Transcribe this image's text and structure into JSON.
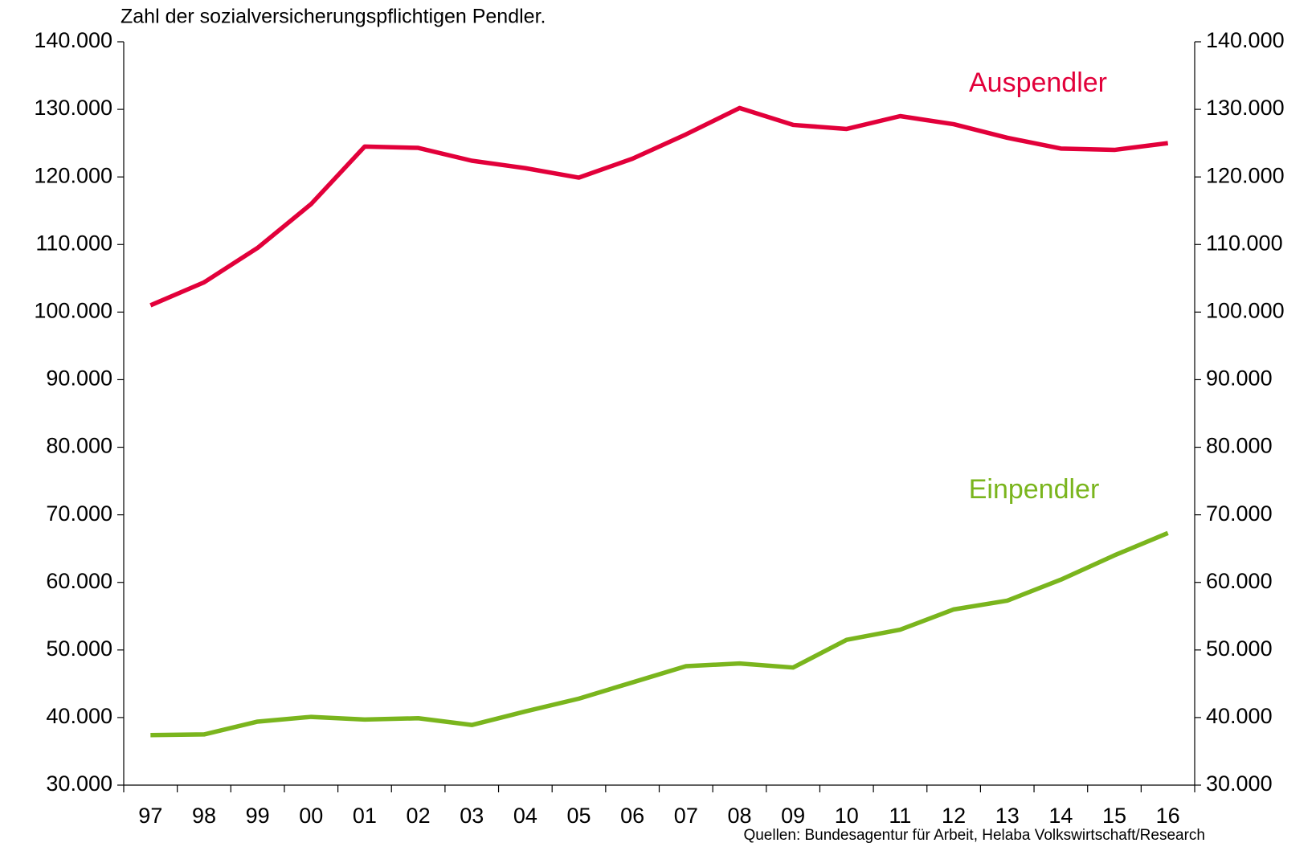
{
  "chart_data": {
    "type": "line",
    "title": "Zahl der sozialversicherungspflichtigen Pendler.",
    "source": "Quellen: Bundesagentur für Arbeit, Helaba Volkswirtschaft/Research",
    "categories": [
      "97",
      "98",
      "99",
      "00",
      "01",
      "02",
      "03",
      "04",
      "05",
      "06",
      "07",
      "08",
      "09",
      "10",
      "11",
      "12",
      "13",
      "14",
      "15",
      "16"
    ],
    "series": [
      {
        "name": "Auspendler",
        "color": "#e2003a",
        "values": [
          101000,
          104400,
          109500,
          116000,
          124500,
          124300,
          122400,
          121300,
          119900,
          122700,
          126300,
          130200,
          127700,
          127100,
          129000,
          127800,
          125800,
          124200,
          124000,
          125000
        ]
      },
      {
        "name": "Einpendler",
        "color": "#7ab51d",
        "values": [
          37400,
          37500,
          39400,
          40100,
          39700,
          39900,
          38900,
          40900,
          42800,
          45200,
          47600,
          48000,
          47400,
          51500,
          53000,
          56000,
          57300,
          60400,
          64000,
          67300
        ]
      }
    ],
    "ylim": [
      30000,
      140000
    ],
    "yticks": [
      {
        "value": 30000,
        "label": "30.000"
      },
      {
        "value": 40000,
        "label": "40.000"
      },
      {
        "value": 50000,
        "label": "50.000"
      },
      {
        "value": 60000,
        "label": "60.000"
      },
      {
        "value": 70000,
        "label": "70.000"
      },
      {
        "value": 80000,
        "label": "80.000"
      },
      {
        "value": 90000,
        "label": "90.000"
      },
      {
        "value": 100000,
        "label": "100.000"
      },
      {
        "value": 110000,
        "label": "110.000"
      },
      {
        "value": 120000,
        "label": "120.000"
      },
      {
        "value": 130000,
        "label": "130.000"
      },
      {
        "value": 140000,
        "label": "140.000"
      }
    ],
    "y2lim": [
      30000,
      140000
    ],
    "y2ticks": [
      {
        "value": 30000,
        "label": "30.000"
      },
      {
        "value": 40000,
        "label": "40.000"
      },
      {
        "value": 50000,
        "label": "50.000"
      },
      {
        "value": 60000,
        "label": "60.000"
      },
      {
        "value": 70000,
        "label": "70.000"
      },
      {
        "value": 80000,
        "label": "80.000"
      },
      {
        "value": 90000,
        "label": "90.000"
      },
      {
        "value": 100000,
        "label": "100.000"
      },
      {
        "value": 110000,
        "label": "110.000"
      },
      {
        "value": 120000,
        "label": "120.000"
      },
      {
        "value": 130000,
        "label": "130.000"
      },
      {
        "value": 140000,
        "label": "140.000"
      }
    ],
    "grid": false
  }
}
